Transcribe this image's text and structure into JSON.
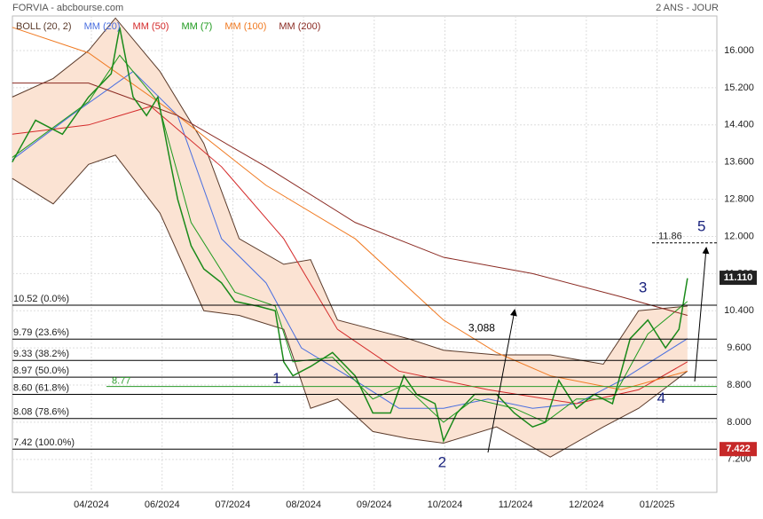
{
  "chart_data": {
    "type": "line",
    "title": "FORVIA - abcbourse.com",
    "subtitle": "2 ANS - JOUR",
    "xlim": [
      -1.117,
      8.846
    ],
    "ylim": [
      6.49,
      16.745
    ],
    "xticks": [
      {
        "value": 0,
        "label": "04/2024"
      },
      {
        "value": 1,
        "label": "06/2024"
      },
      {
        "value": 2,
        "label": "07/2024"
      },
      {
        "value": 3,
        "label": "08/2024"
      },
      {
        "value": 4,
        "label": "09/2024"
      },
      {
        "value": 5,
        "label": "10/2024"
      },
      {
        "value": 6,
        "label": "11/2024"
      },
      {
        "value": 7,
        "label": "12/2024"
      },
      {
        "value": 8,
        "label": "01/2025"
      }
    ],
    "yticks": [
      {
        "value": 7.2,
        "label": "7.200"
      },
      {
        "value": 8,
        "label": "8.000"
      },
      {
        "value": 8.8,
        "label": "8.800"
      },
      {
        "value": 9.6,
        "label": "9.600"
      },
      {
        "value": 10.4,
        "label": "10.400"
      },
      {
        "value": 11.2,
        "label": "11.200"
      },
      {
        "value": 12,
        "label": "12.000"
      },
      {
        "value": 12.8,
        "label": "12.800"
      },
      {
        "value": 13.6,
        "label": "13.600"
      },
      {
        "value": 14.4,
        "label": "14.400"
      },
      {
        "value": 15.2,
        "label": "15.200"
      },
      {
        "value": 16,
        "label": "16.000"
      }
    ],
    "grid": true,
    "bollinger": {
      "name": "BOLL (20, 2)",
      "color": "#5a3a2a",
      "fill": "#fbe3d3",
      "x": [
        -1.12,
        -0.54,
        -0.04,
        0.34,
        0.97,
        1.59,
        2.09,
        2.72,
        3.1,
        3.48,
        3.98,
        4.48,
        4.98,
        5.73,
        6.49,
        7.24,
        7.74,
        8.43
      ],
      "upper": [
        15.0,
        15.4,
        16.0,
        16.7,
        15.55,
        14.0,
        11.95,
        11.4,
        11.5,
        10.2,
        10.0,
        9.8,
        9.55,
        9.45,
        9.45,
        9.25,
        10.4,
        10.5
      ],
      "lower": [
        13.25,
        12.7,
        13.55,
        13.75,
        12.5,
        10.4,
        10.3,
        10.0,
        8.3,
        8.5,
        7.8,
        7.65,
        7.55,
        7.9,
        7.25,
        7.9,
        8.3,
        9.1
      ]
    },
    "price": {
      "color": "#1a8a1a",
      "x": [
        -1.12,
        -0.79,
        -0.41,
        -0.04,
        0.28,
        0.4,
        0.59,
        0.78,
        0.94,
        1.09,
        1.22,
        1.41,
        1.59,
        1.84,
        2.03,
        2.35,
        2.6,
        2.72,
        2.85,
        3.1,
        3.41,
        3.73,
        3.98,
        4.23,
        4.42,
        4.6,
        4.86,
        4.98,
        5.17,
        5.42,
        5.73,
        5.98,
        6.24,
        6.42,
        6.61,
        6.86,
        7.11,
        7.37,
        7.62,
        7.87,
        8.12,
        8.31,
        8.43
      ],
      "values": [
        13.6,
        14.5,
        14.2,
        15.0,
        15.5,
        16.5,
        15.0,
        14.6,
        15.0,
        13.8,
        12.8,
        11.8,
        11.3,
        11.0,
        10.6,
        10.5,
        10.4,
        9.3,
        9.0,
        9.2,
        9.5,
        9.0,
        8.2,
        8.2,
        9.0,
        8.6,
        8.4,
        7.6,
        8.2,
        8.6,
        8.6,
        8.2,
        7.9,
        8.0,
        8.9,
        8.3,
        8.6,
        8.4,
        9.8,
        10.2,
        9.6,
        10.0,
        11.1
      ]
    },
    "series": [
      {
        "name": "MM (20)",
        "color": "#4a6fe0",
        "x": [
          -1.12,
          -0.29,
          0.59,
          1.22,
          1.84,
          2.47,
          2.97,
          3.73,
          4.35,
          4.98,
          5.61,
          6.24,
          6.86,
          7.49,
          8.43
        ],
        "values": [
          13.65,
          14.6,
          15.55,
          14.6,
          11.95,
          11.0,
          9.6,
          8.9,
          8.3,
          8.3,
          8.5,
          8.3,
          8.4,
          8.9,
          9.8
        ]
      },
      {
        "name": "MM (50)",
        "color": "#d42a2a",
        "x": [
          -1.12,
          -0.04,
          0.84,
          1.84,
          2.72,
          3.48,
          4.35,
          5.61,
          6.86,
          7.74,
          8.43
        ],
        "values": [
          14.2,
          14.4,
          14.8,
          13.5,
          11.95,
          10.0,
          9.1,
          8.7,
          8.4,
          8.7,
          9.3
        ]
      },
      {
        "name": "MM (7)",
        "color": "#1e9a1e",
        "x": [
          -1.12,
          -0.04,
          0.4,
          0.94,
          1.41,
          2.03,
          2.6,
          2.85,
          3.41,
          3.98,
          4.42,
          4.98,
          5.42,
          5.98,
          6.42,
          6.86,
          7.37,
          7.87,
          8.43
        ],
        "values": [
          13.7,
          14.9,
          15.9,
          14.9,
          12.3,
          10.8,
          10.5,
          9.3,
          9.4,
          8.5,
          8.8,
          8.0,
          8.5,
          8.3,
          8.0,
          8.5,
          8.5,
          9.9,
          10.6
        ]
      },
      {
        "name": "MM (100)",
        "color": "#f07a22",
        "x": [
          -1.12,
          -0.04,
          1.22,
          2.47,
          3.73,
          4.98,
          5.73,
          6.49,
          7.49,
          8.43
        ],
        "values": [
          16.5,
          15.95,
          14.6,
          13.1,
          11.95,
          10.2,
          9.5,
          9.0,
          8.7,
          9.1
        ]
      },
      {
        "name": "MM (200)",
        "color": "#8a2a22",
        "x": [
          -1.12,
          -0.04,
          1.22,
          2.47,
          3.73,
          4.98,
          6.24,
          7.49,
          8.43
        ],
        "values": [
          15.3,
          15.3,
          14.6,
          13.5,
          12.3,
          11.55,
          11.2,
          10.7,
          10.3
        ]
      }
    ],
    "fibonacci": [
      {
        "label": "10.52  (0.0%)",
        "value": 10.52
      },
      {
        "label": "9.79  (23.6%)",
        "value": 9.79
      },
      {
        "label": "9.33  (38.2%)",
        "value": 9.33
      },
      {
        "label": "8.97  (50.0%)",
        "value": 8.97
      },
      {
        "label": "8.60  (61.8%)",
        "value": 8.6
      },
      {
        "label": "8.08  (78.6%)",
        "value": 8.08
      },
      {
        "label": "7.42  (100.0%)",
        "value": 7.42
      }
    ],
    "support": {
      "label": "8.77",
      "value": 8.77,
      "color": "#2a9a2a"
    },
    "target": {
      "label": "11.86",
      "value": 11.86
    },
    "last_price": {
      "label": "11.110",
      "value": 11.11
    },
    "low_price": {
      "label": "7.422",
      "value": 7.422
    },
    "annotations": [
      {
        "text": "1",
        "x": 2.62,
        "y": 8.92
      },
      {
        "text": "2",
        "x": 4.96,
        "y": 7.12
      },
      {
        "text": "3",
        "x": 7.8,
        "y": 10.88
      },
      {
        "text": "4",
        "x": 8.06,
        "y": 8.5
      },
      {
        "text": "5",
        "x": 8.63,
        "y": 12.2
      },
      {
        "text": "3,088",
        "x": 5.52,
        "y": 10.02
      }
    ]
  }
}
